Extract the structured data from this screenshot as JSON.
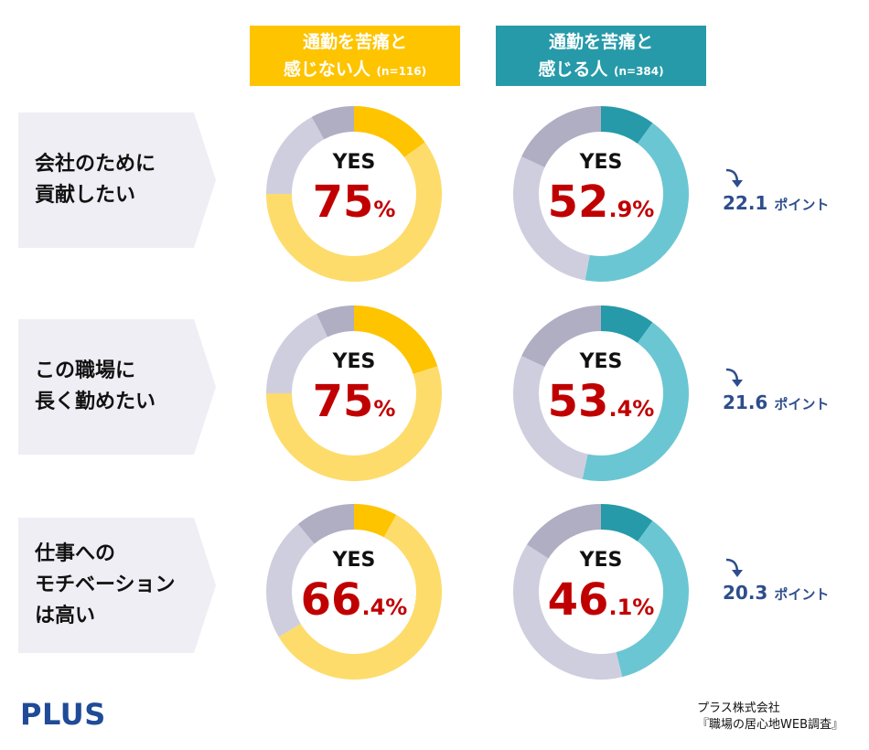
{
  "headers": {
    "a": {
      "line1": "通勤を苦痛と",
      "line2": "感じない人",
      "n": "(n=116)"
    },
    "b": {
      "line1": "通勤を苦痛と",
      "line2": "感じる人",
      "n": "(n=384)"
    }
  },
  "rows": [
    {
      "label_l1": "会社のために",
      "label_l2": "貢献したい",
      "label_l3": "",
      "a_yes": "YES",
      "a_int": "75",
      "a_dec": "%",
      "b_yes": "YES",
      "b_int": "52",
      "b_dec": ".9%",
      "diff": "22.1",
      "diff_unit": "ポイント"
    },
    {
      "label_l1": "この職場に",
      "label_l2": "長く勤めたい",
      "label_l3": "",
      "a_yes": "YES",
      "a_int": "75",
      "a_dec": "%",
      "b_yes": "YES",
      "b_int": "53",
      "b_dec": ".4%",
      "diff": "21.6",
      "diff_unit": "ポイント"
    },
    {
      "label_l1": "仕事への",
      "label_l2": "モチベーション",
      "label_l3": "は高い",
      "a_yes": "YES",
      "a_int": "66",
      "a_dec": ".4%",
      "b_yes": "YES",
      "b_int": "46",
      "b_dec": ".1%",
      "diff": "20.3",
      "diff_unit": "ポイント"
    }
  ],
  "footer": {
    "logo": "PLUS",
    "source_l1": "プラス株式会社",
    "source_l2": "『職場の居心地WEB調査』"
  },
  "colors": {
    "a_yes": "#fddc6b",
    "a_accent": "#fec400",
    "b_yes": "#6bc6d3",
    "b_accent": "#269aa9",
    "other_light": "#cfcedf",
    "other_dark": "#b0aec3",
    "pct_red": "#c00000",
    "diff_blue": "#2d4d8c"
  },
  "chart_data": [
    {
      "type": "pie",
      "group": "通勤を苦痛と感じない人",
      "row": "会社のために貢献したい",
      "segments": [
        {
          "label": "top-accent",
          "value": 15
        },
        {
          "label": "YES rest",
          "value": 60
        },
        {
          "label": "grey-light",
          "value": 17
        },
        {
          "label": "grey-dark",
          "value": 8
        }
      ],
      "yes_total": 75
    },
    {
      "type": "pie",
      "group": "通勤を苦痛と感じる人",
      "row": "会社のために貢献したい",
      "segments": [
        {
          "label": "top-accent",
          "value": 10
        },
        {
          "label": "YES rest",
          "value": 42.9
        },
        {
          "label": "grey-light",
          "value": 29.1
        },
        {
          "label": "grey-dark",
          "value": 18
        }
      ],
      "yes_total": 52.9
    },
    {
      "type": "pie",
      "group": "通勤を苦痛と感じない人",
      "row": "この職場に長く勤めたい",
      "segments": [
        {
          "label": "top-accent",
          "value": 20
        },
        {
          "label": "YES rest",
          "value": 55
        },
        {
          "label": "grey-light",
          "value": 18
        },
        {
          "label": "grey-dark",
          "value": 7
        }
      ],
      "yes_total": 75
    },
    {
      "type": "pie",
      "group": "通勤を苦痛と感じる人",
      "row": "この職場に長く勤めたい",
      "segments": [
        {
          "label": "top-accent",
          "value": 10
        },
        {
          "label": "YES rest",
          "value": 43.4
        },
        {
          "label": "grey-light",
          "value": 28.6
        },
        {
          "label": "grey-dark",
          "value": 18
        }
      ],
      "yes_total": 53.4
    },
    {
      "type": "pie",
      "group": "通勤を苦痛と感じない人",
      "row": "仕事へのモチベーションは高い",
      "segments": [
        {
          "label": "top-accent",
          "value": 8
        },
        {
          "label": "YES rest",
          "value": 58.4
        },
        {
          "label": "grey-light",
          "value": 22.6
        },
        {
          "label": "grey-dark",
          "value": 11
        }
      ],
      "yes_total": 66.4
    },
    {
      "type": "pie",
      "group": "通勤を苦痛と感じる人",
      "row": "仕事へのモチベーションは高い",
      "segments": [
        {
          "label": "top-accent",
          "value": 10
        },
        {
          "label": "YES rest",
          "value": 36.1
        },
        {
          "label": "grey-light",
          "value": 37.9
        },
        {
          "label": "grey-dark",
          "value": 16
        }
      ],
      "yes_total": 46.1
    }
  ]
}
